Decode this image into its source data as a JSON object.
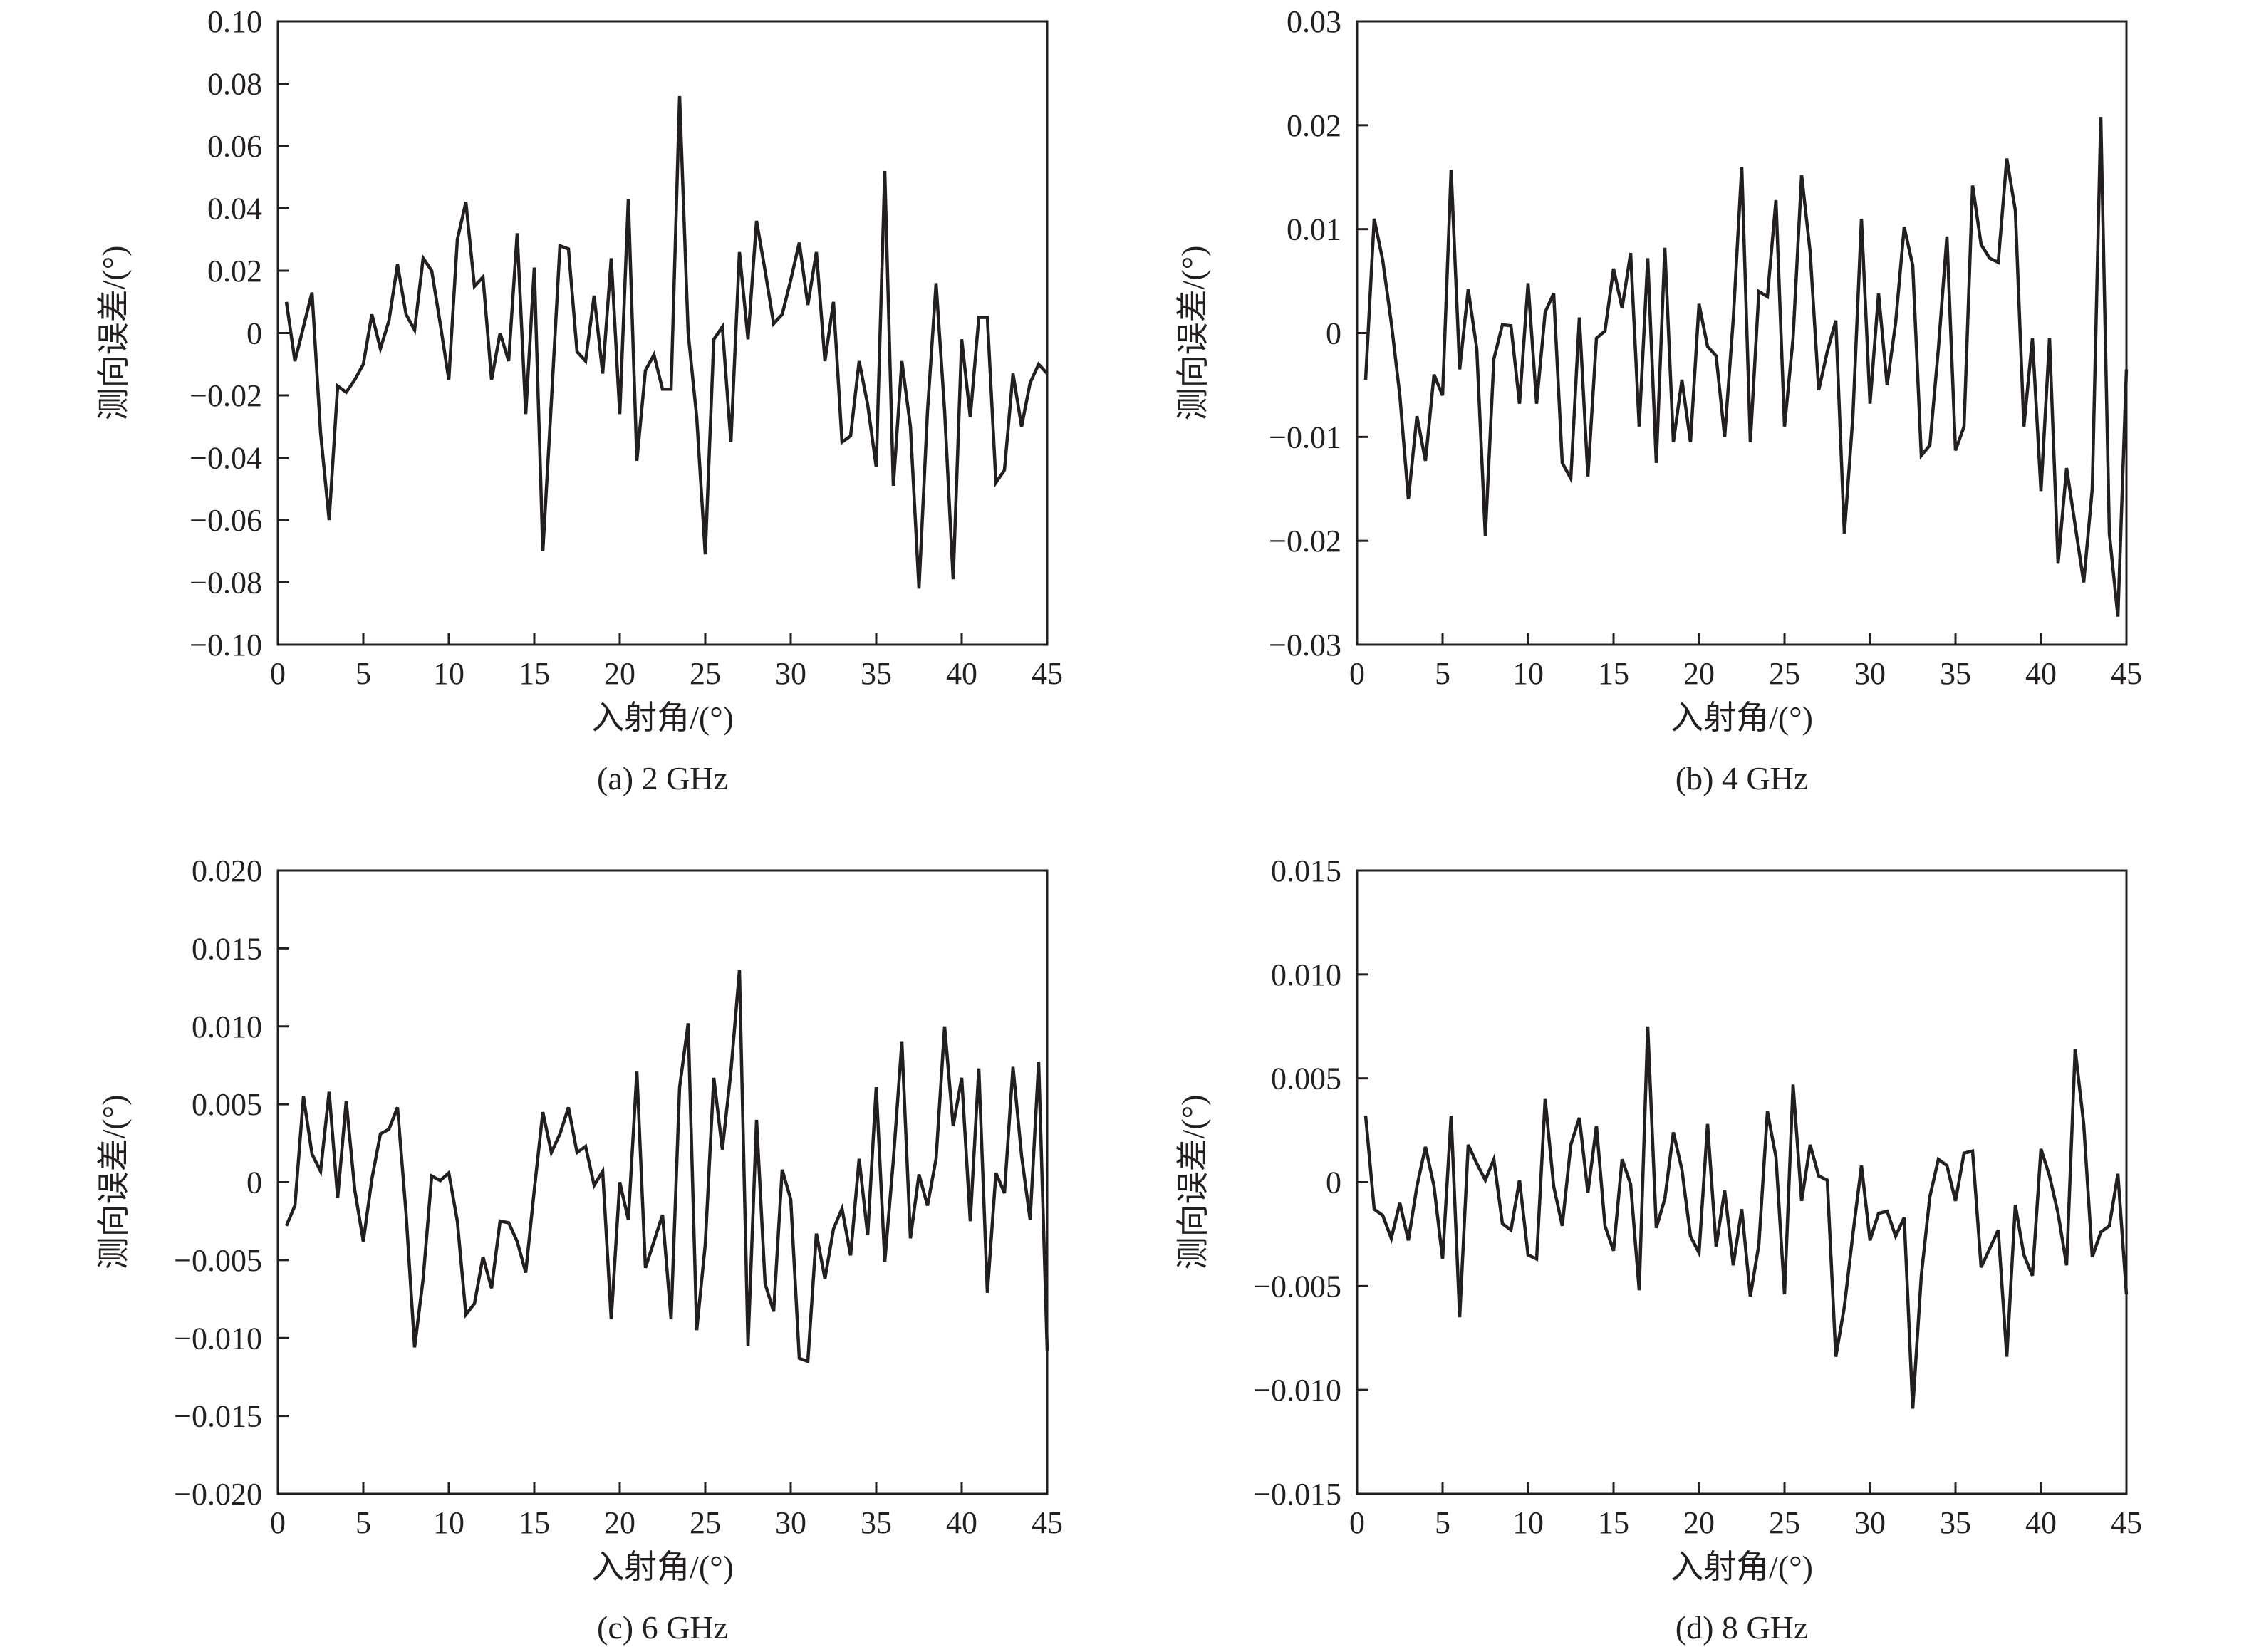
{
  "chart_data": [
    {
      "panel": "a",
      "type": "line",
      "caption": "(a) 2 GHz",
      "xlabel": "入射角/(°)",
      "ylabel": "测向误差/(°)",
      "xlim": [
        0,
        45
      ],
      "ylim": [
        -0.1,
        0.1
      ],
      "xticks": [
        "0",
        "5",
        "10",
        "15",
        "20",
        "25",
        "30",
        "35",
        "40",
        "45"
      ],
      "yticks": [
        "0.10",
        "0.08",
        "0.06",
        "0.04",
        "0.02",
        "0",
        "−0.02",
        "−0.04",
        "−0.06",
        "−0.08",
        "−0.10"
      ],
      "x": [
        0.5,
        1,
        1.5,
        2,
        2.5,
        3,
        3.5,
        4,
        4.5,
        5,
        5.5,
        6,
        6.5,
        7,
        7.5,
        8,
        8.5,
        9,
        9.5,
        10,
        10.5,
        11,
        11.5,
        12,
        12.5,
        13,
        13.5,
        14,
        14.5,
        15,
        15.5,
        16,
        16.5,
        17,
        17.5,
        18,
        18.5,
        19,
        19.5,
        20,
        20.5,
        21,
        21.5,
        22,
        22.5,
        23,
        23.5,
        24,
        24.5,
        25,
        25.5,
        26,
        26.5,
        27,
        27.5,
        28,
        28.5,
        29,
        29.5,
        30,
        30.5,
        31,
        31.5,
        32,
        32.5,
        33,
        33.5,
        34,
        34.5,
        35,
        35.5,
        36,
        36.5,
        37,
        37.5,
        38,
        38.5,
        39,
        39.5,
        40,
        40.5,
        41,
        41.5,
        42,
        42.5,
        43,
        43.5,
        44,
        44.5,
        45
      ],
      "y": [
        0.01,
        -0.009,
        0.002,
        0.013,
        -0.032,
        -0.06,
        -0.017,
        -0.019,
        -0.015,
        -0.01,
        0.006,
        -0.005,
        0.004,
        0.022,
        0.006,
        0.001,
        0.024,
        0.02,
        0.003,
        -0.015,
        0.03,
        0.042,
        0.015,
        0.018,
        -0.015,
        0.0,
        -0.009,
        0.032,
        -0.026,
        0.021,
        -0.07,
        -0.022,
        0.028,
        0.027,
        -0.006,
        -0.009,
        0.012,
        -0.013,
        0.024,
        -0.026,
        0.043,
        -0.041,
        -0.012,
        -0.007,
        -0.018,
        -0.018,
        0.076,
        0.0,
        -0.027,
        -0.071,
        -0.002,
        0.002,
        -0.035,
        0.026,
        -0.002,
        0.036,
        0.02,
        0.003,
        0.006,
        0.017,
        0.029,
        0.009,
        0.026,
        -0.009,
        0.01,
        -0.035,
        -0.033,
        -0.009,
        -0.023,
        -0.043,
        0.052,
        -0.049,
        -0.009,
        -0.03,
        -0.082,
        -0.025,
        0.016,
        -0.025,
        -0.079,
        -0.002,
        -0.027,
        0.005,
        0.005,
        -0.048,
        -0.044,
        -0.013,
        -0.03,
        -0.016,
        -0.01,
        -0.013
      ]
    },
    {
      "panel": "b",
      "type": "line",
      "caption": "(b) 4 GHz",
      "xlabel": "入射角/(°)",
      "ylabel": "测向误差/(°)",
      "xlim": [
        0,
        45
      ],
      "ylim": [
        -0.03,
        0.03
      ],
      "xticks": [
        "0",
        "5",
        "10",
        "15",
        "20",
        "25",
        "30",
        "35",
        "40",
        "45"
      ],
      "yticks": [
        "0.03",
        "0.02",
        "0.01",
        "0",
        "−0.01",
        "−0.02",
        "−0.03"
      ],
      "x": [
        0.5,
        1,
        1.5,
        2,
        2.5,
        3,
        3.5,
        4,
        4.5,
        5,
        5.5,
        6,
        6.5,
        7,
        7.5,
        8,
        8.5,
        9,
        9.5,
        10,
        10.5,
        11,
        11.5,
        12,
        12.5,
        13,
        13.5,
        14,
        14.5,
        15,
        15.5,
        16,
        16.5,
        17,
        17.5,
        18,
        18.5,
        19,
        19.5,
        20,
        20.5,
        21,
        21.5,
        22,
        22.5,
        23,
        23.5,
        24,
        24.5,
        25,
        25.5,
        26,
        26.5,
        27,
        27.5,
        28,
        28.5,
        29,
        29.5,
        30,
        30.5,
        31,
        31.5,
        32,
        32.5,
        33,
        33.5,
        34,
        34.5,
        35,
        35.5,
        36,
        36.5,
        37,
        37.5,
        38,
        38.5,
        39,
        39.5,
        40,
        40.5,
        41,
        41.5,
        42,
        42.5,
        43,
        43.5,
        44,
        44.5,
        45
      ],
      "y": [
        -0.0045,
        0.011,
        0.007,
        0.001,
        -0.006,
        -0.016,
        -0.008,
        -0.0123,
        -0.004,
        -0.006,
        0.0157,
        -0.0035,
        0.0042,
        -0.0015,
        -0.0195,
        -0.0025,
        0.0008,
        0.0007,
        -0.0068,
        0.0048,
        -0.0068,
        0.002,
        0.0038,
        -0.0125,
        -0.014,
        0.0015,
        -0.0138,
        -0.0005,
        0.0002,
        0.0062,
        0.0024,
        0.0077,
        -0.009,
        0.0072,
        -0.0125,
        0.0082,
        -0.0105,
        -0.0045,
        -0.0105,
        0.0028,
        -0.0013,
        -0.0022,
        -0.01,
        0.0013,
        0.016,
        -0.0105,
        0.004,
        0.0035,
        0.0128,
        -0.009,
        -0.0005,
        0.0152,
        0.0078,
        -0.0055,
        -0.0018,
        0.0012,
        -0.0193,
        -0.008,
        0.011,
        -0.0068,
        0.0038,
        -0.005,
        0.001,
        0.0102,
        0.0065,
        -0.0118,
        -0.0108,
        -0.0015,
        0.0093,
        -0.0113,
        -0.009,
        0.0142,
        0.0085,
        0.0072,
        0.0068,
        0.0168,
        0.0118,
        -0.009,
        -0.0005,
        -0.0152,
        -0.0005,
        -0.0222,
        -0.013,
        -0.0185,
        -0.024,
        -0.015,
        0.0208,
        -0.0193,
        -0.0273,
        -0.0035
      ]
    },
    {
      "panel": "c",
      "type": "line",
      "caption": "(c) 6 GHz",
      "xlabel": "入射角/(°)",
      "ylabel": "测向误差/(°)",
      "xlim": [
        0,
        45
      ],
      "ylim": [
        -0.02,
        0.02
      ],
      "xticks": [
        "0",
        "5",
        "10",
        "15",
        "20",
        "25",
        "30",
        "35",
        "40",
        "45"
      ],
      "yticks": [
        "0.020",
        "0.015",
        "0.010",
        "0.005",
        "0",
        "−0.005",
        "−0.010",
        "−0.015",
        "−0.020"
      ],
      "x": [
        0.5,
        1,
        1.5,
        2,
        2.5,
        3,
        3.5,
        4,
        4.5,
        5,
        5.5,
        6,
        6.5,
        7,
        7.5,
        8,
        8.5,
        9,
        9.5,
        10,
        10.5,
        11,
        11.5,
        12,
        12.5,
        13,
        13.5,
        14,
        14.5,
        15,
        15.5,
        16,
        16.5,
        17,
        17.5,
        18,
        18.5,
        19,
        19.5,
        20,
        20.5,
        21,
        21.5,
        22,
        22.5,
        23,
        23.5,
        24,
        24.5,
        25,
        25.5,
        26,
        26.5,
        27,
        27.5,
        28,
        28.5,
        29,
        29.5,
        30,
        30.5,
        31,
        31.5,
        32,
        32.5,
        33,
        33.5,
        34,
        34.5,
        35,
        35.5,
        36,
        36.5,
        37,
        37.5,
        38,
        38.5,
        39,
        39.5,
        40,
        40.5,
        41,
        41.5,
        42,
        42.5,
        43,
        43.5,
        44,
        44.5,
        45
      ],
      "y": [
        -0.0028,
        -0.0015,
        0.0055,
        0.0018,
        0.0007,
        0.0058,
        -0.001,
        0.0052,
        -0.0005,
        -0.0038,
        0.0002,
        0.0031,
        0.0034,
        0.0048,
        -0.002,
        -0.0106,
        -0.0062,
        0.0004,
        0.0001,
        0.0006,
        -0.0025,
        -0.0085,
        -0.0078,
        -0.0048,
        -0.0068,
        -0.0025,
        -0.0026,
        -0.0038,
        -0.0058,
        -0.0005,
        0.0045,
        0.0019,
        0.0031,
        0.0048,
        0.0019,
        0.0023,
        -0.0002,
        0.0007,
        -0.0088,
        0.0,
        -0.0024,
        0.0071,
        -0.0055,
        -0.0038,
        -0.0021,
        -0.0088,
        0.0061,
        0.0102,
        -0.0095,
        -0.004,
        0.0067,
        0.0021,
        0.0071,
        0.0136,
        -0.0105,
        0.004,
        -0.0065,
        -0.0083,
        0.0008,
        -0.0011,
        -0.0113,
        -0.0115,
        -0.0033,
        -0.0062,
        -0.003,
        -0.0017,
        -0.0047,
        0.0015,
        -0.0034,
        0.0061,
        -0.0051,
        0.0014,
        0.009,
        -0.0036,
        0.0005,
        -0.0015,
        0.0015,
        0.01,
        0.0036,
        0.0067,
        -0.0025,
        0.0073,
        -0.0071,
        0.0006,
        -0.0007,
        0.0074,
        0.0017,
        -0.0024,
        0.0077,
        -0.0108
      ]
    },
    {
      "panel": "d",
      "type": "line",
      "caption": "(d) 8 GHz",
      "xlabel": "入射角/(°)",
      "ylabel": "测向误差/(°)",
      "xlim": [
        0,
        45
      ],
      "ylim": [
        -0.015,
        0.015
      ],
      "xticks": [
        "0",
        "5",
        "10",
        "15",
        "20",
        "25",
        "30",
        "35",
        "40",
        "45"
      ],
      "yticks": [
        "0.015",
        "0.010",
        "0.005",
        "0",
        "−0.005",
        "−0.010",
        "−0.015"
      ],
      "x": [
        0.5,
        1,
        1.5,
        2,
        2.5,
        3,
        3.5,
        4,
        4.5,
        5,
        5.5,
        6,
        6.5,
        7,
        7.5,
        8,
        8.5,
        9,
        9.5,
        10,
        10.5,
        11,
        11.5,
        12,
        12.5,
        13,
        13.5,
        14,
        14.5,
        15,
        15.5,
        16,
        16.5,
        17,
        17.5,
        18,
        18.5,
        19,
        19.5,
        20,
        20.5,
        21,
        21.5,
        22,
        22.5,
        23,
        23.5,
        24,
        24.5,
        25,
        25.5,
        26,
        26.5,
        27,
        27.5,
        28,
        28.5,
        29,
        29.5,
        30,
        30.5,
        31,
        31.5,
        32,
        32.5,
        33,
        33.5,
        34,
        34.5,
        35,
        35.5,
        36,
        36.5,
        37,
        37.5,
        38,
        38.5,
        39,
        39.5,
        40,
        40.5,
        41,
        41.5,
        42,
        42.5,
        43,
        43.5,
        44,
        44.5,
        45
      ],
      "y": [
        0.0032,
        -0.0013,
        -0.0016,
        -0.0027,
        -0.001,
        -0.0028,
        -0.0002,
        0.0017,
        -0.0002,
        -0.0037,
        0.0032,
        -0.0065,
        0.0018,
        0.0009,
        0.0001,
        0.0011,
        -0.002,
        -0.0023,
        0.0001,
        -0.0035,
        -0.0037,
        0.004,
        -0.0002,
        -0.0021,
        0.0018,
        0.0031,
        -0.0005,
        0.0027,
        -0.0021,
        -0.0033,
        0.0011,
        -0.0001,
        -0.0052,
        0.0075,
        -0.0022,
        -0.0008,
        0.0024,
        0.0006,
        -0.0026,
        -0.0034,
        0.0028,
        -0.0031,
        -0.0004,
        -0.004,
        -0.0013,
        -0.0055,
        -0.003,
        0.0034,
        0.0012,
        -0.0054,
        0.0047,
        -0.0009,
        0.0018,
        0.0003,
        0.0001,
        -0.0084,
        -0.006,
        -0.0025,
        0.0008,
        -0.0028,
        -0.0015,
        -0.0014,
        -0.0026,
        -0.0017,
        -0.0109,
        -0.0045,
        -0.0007,
        0.0011,
        0.0008,
        -0.0009,
        0.0014,
        0.0015,
        -0.0041,
        -0.0032,
        -0.0023,
        -0.0084,
        -0.0011,
        -0.0035,
        -0.0045,
        0.0016,
        0.0003,
        -0.0015,
        -0.004,
        0.0064,
        0.0028,
        -0.0036,
        -0.0024,
        -0.0021,
        0.0004,
        -0.0054
      ]
    }
  ]
}
